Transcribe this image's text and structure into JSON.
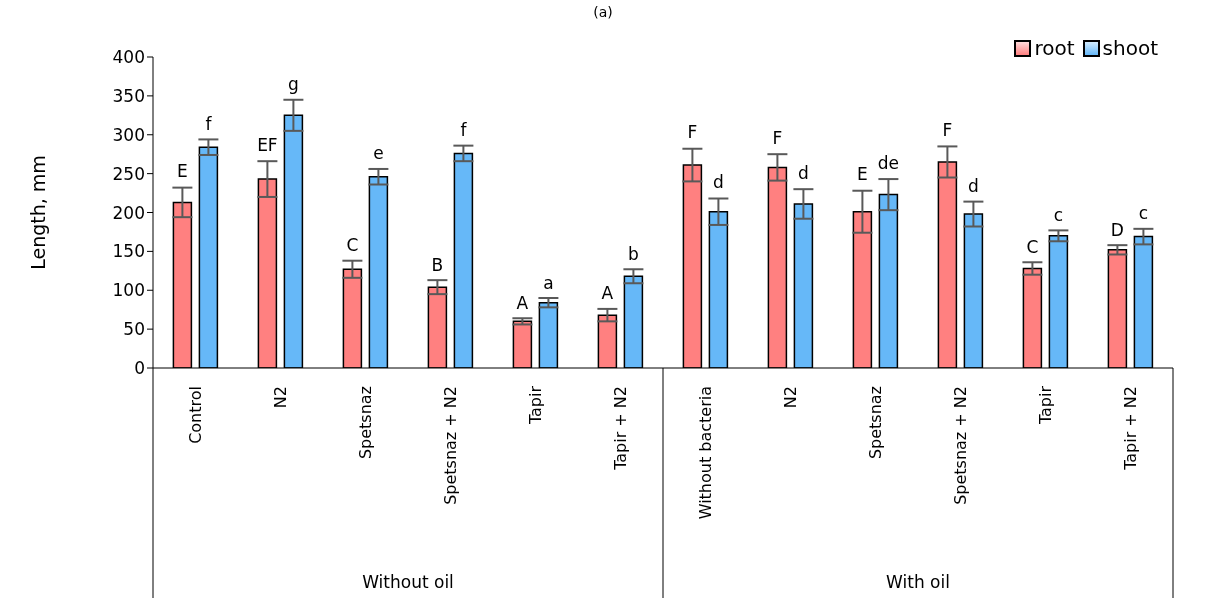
{
  "chart_data": {
    "type": "bar",
    "title": "(a)",
    "ylabel": "Length, mm",
    "categories": [
      "Control",
      "N2",
      "Spetsnaz",
      "Spetsnaz + N2",
      "Tapir",
      "Tapir + N2",
      "Without bacteria",
      "N2",
      "Spetsnaz",
      "Spetsnaz + N2",
      "Tapir",
      "Tapir + N2"
    ],
    "series": [
      {
        "name": "root",
        "color": "#ff8080",
        "values": [
          213,
          243,
          127,
          104,
          60,
          68,
          261,
          258,
          201,
          265,
          128,
          152
        ],
        "errors": [
          19,
          23,
          11,
          9,
          4,
          8,
          21,
          17,
          27,
          20,
          8,
          6
        ],
        "value_labels": [
          "E",
          "EF",
          "C",
          "B",
          "A",
          "A",
          "F",
          "F",
          "E",
          "F",
          "C",
          "D"
        ]
      },
      {
        "name": "shoot",
        "color": "#66b8f8",
        "values": [
          284,
          325,
          246,
          276,
          84,
          118,
          201,
          211,
          223,
          198,
          170,
          169
        ],
        "errors": [
          10,
          20,
          10,
          10,
          6,
          9,
          17,
          19,
          20,
          16,
          7,
          10
        ],
        "value_labels": [
          "f",
          "g",
          "e",
          "f",
          "a",
          "b",
          "d",
          "d",
          "de",
          "d",
          "c",
          "c"
        ]
      }
    ],
    "annotations": [
      "Without oil",
      "With oil"
    ],
    "ylim": [
      0,
      400
    ],
    "yticks": [
      0,
      50,
      100,
      150,
      200,
      250,
      300,
      350,
      400
    ],
    "legend": "top right",
    "grid": false
  }
}
